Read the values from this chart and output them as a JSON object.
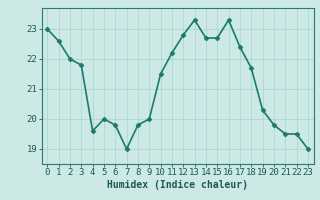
{
  "x": [
    0,
    1,
    2,
    3,
    4,
    5,
    6,
    7,
    8,
    9,
    10,
    11,
    12,
    13,
    14,
    15,
    16,
    17,
    18,
    19,
    20,
    21,
    22,
    23
  ],
  "y": [
    23.0,
    22.6,
    22.0,
    21.8,
    19.6,
    20.0,
    19.8,
    19.0,
    19.8,
    20.0,
    21.5,
    22.2,
    22.8,
    23.3,
    22.7,
    22.7,
    23.3,
    22.4,
    21.7,
    20.3,
    19.8,
    19.5,
    19.5,
    19.0
  ],
  "line_color": "#1a7a6e",
  "marker": "D",
  "marker_size": 2.5,
  "bg_color": "#cce9e5",
  "grid_color": "#aed8d3",
  "ylabel_ticks": [
    19,
    20,
    21,
    22,
    23
  ],
  "xlabel": "Humidex (Indice chaleur)",
  "xlim": [
    -0.5,
    23.5
  ],
  "ylim": [
    18.5,
    23.7
  ],
  "axis_color": "#2a7a6e",
  "tick_color": "#1a5a52",
  "label_color": "#1a5a52",
  "xlabel_fontsize": 7.0,
  "tick_fontsize": 6.5,
  "linewidth": 1.2
}
